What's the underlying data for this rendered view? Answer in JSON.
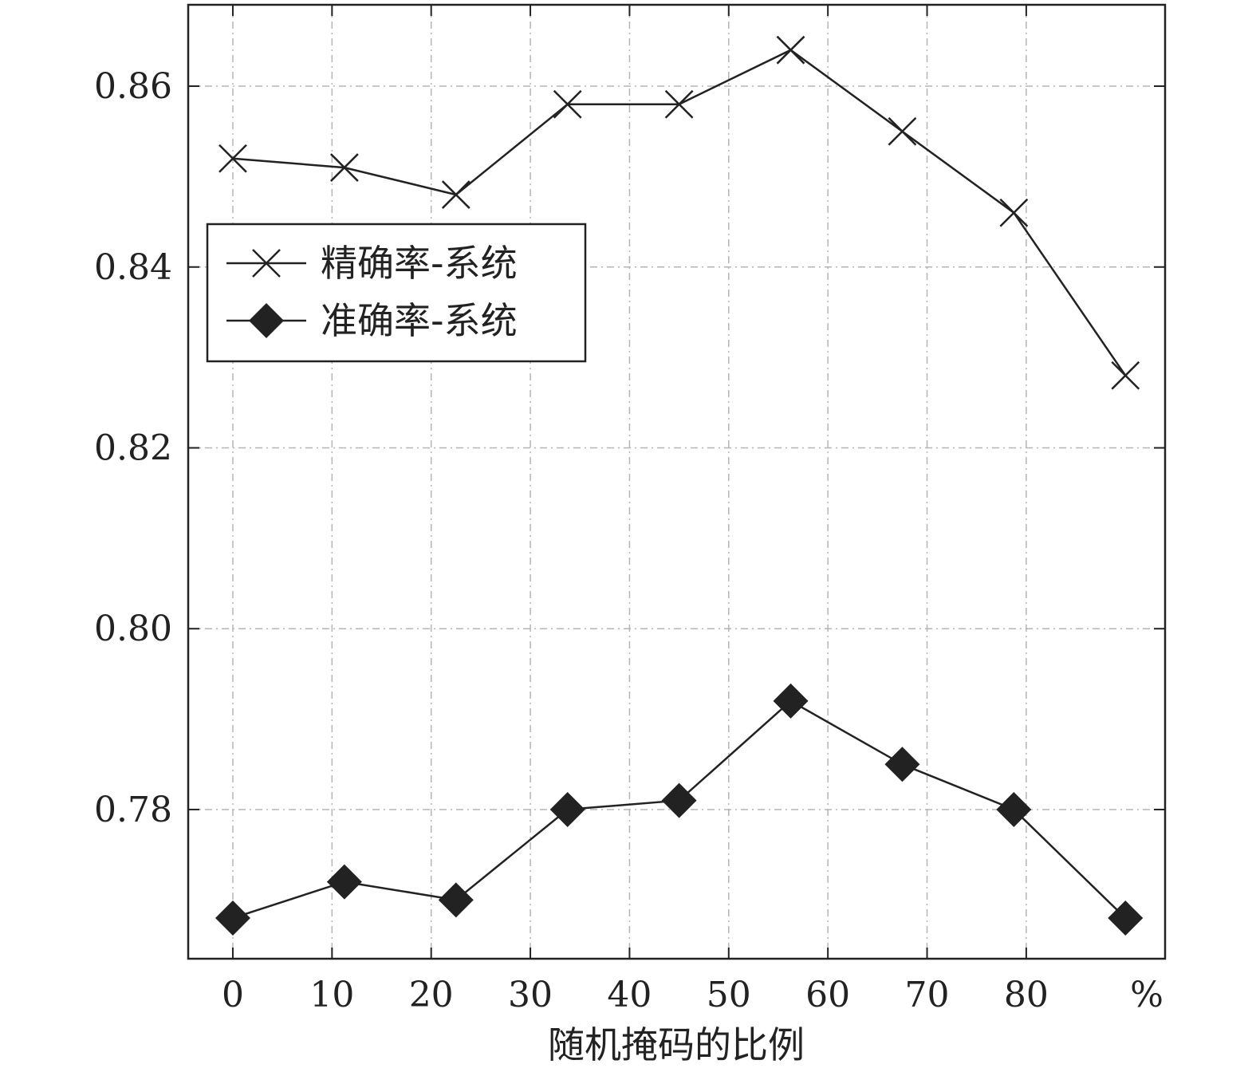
{
  "chart_data": {
    "type": "line",
    "xlabel": "随机掩码的比例",
    "x_unit_label": "%",
    "x_ticks": [
      "0",
      "10",
      "20",
      "30",
      "40",
      "50",
      "60",
      "70",
      "80"
    ],
    "y_ticks": [
      "0.78",
      "0.80",
      "0.82",
      "0.84",
      "0.86"
    ],
    "xlim": [
      -4.5,
      94
    ],
    "ylim": [
      0.7635,
      0.869
    ],
    "grid": true,
    "legend_position": "upper-left",
    "x": [
      0,
      11.25,
      22.5,
      33.75,
      45,
      56.25,
      67.5,
      78.75,
      90
    ],
    "series": [
      {
        "name": "精确率-系统",
        "marker": "x",
        "color": "#222222",
        "values": [
          0.852,
          0.851,
          0.848,
          0.858,
          0.858,
          0.864,
          0.855,
          0.846,
          0.828
        ]
      },
      {
        "name": "准确率-系统",
        "marker": "diamond",
        "color": "#222222",
        "values": [
          0.768,
          0.772,
          0.77,
          0.78,
          0.781,
          0.792,
          0.785,
          0.78,
          0.768
        ]
      }
    ]
  }
}
